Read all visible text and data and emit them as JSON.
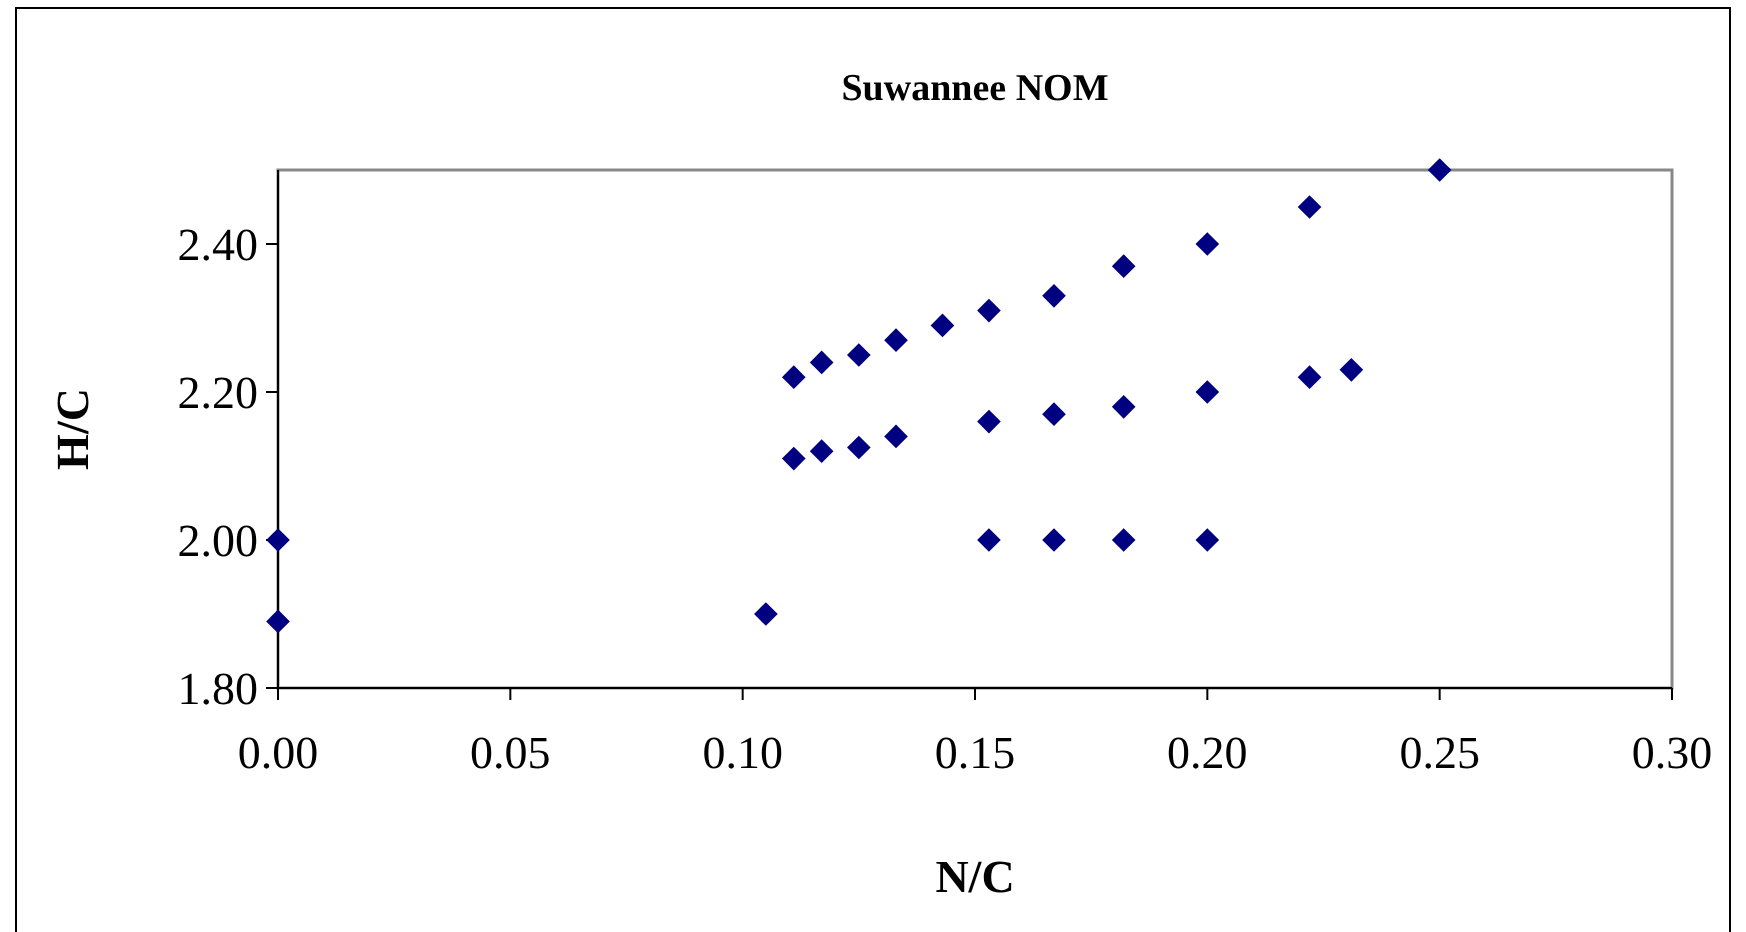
{
  "chart_data": {
    "type": "scatter",
    "title": "Suwannee NOM",
    "xlabel": "N/C",
    "ylabel": "H/C",
    "x": [
      0,
      0,
      0.105,
      0.111,
      0.117,
      0.125,
      0.133,
      0.143,
      0.153,
      0.167,
      0.182,
      0.2,
      0.222,
      0.25,
      0.111,
      0.117,
      0.125,
      0.133,
      0.153,
      0.167,
      0.182,
      0.2,
      0.222,
      0.231,
      0.153,
      0.167,
      0.182,
      0.2
    ],
    "values": [
      2.0,
      1.89,
      1.9,
      2.22,
      2.24,
      2.25,
      2.27,
      2.29,
      2.31,
      2.33,
      2.37,
      2.4,
      2.45,
      2.5,
      2.11,
      2.12,
      2.125,
      2.14,
      2.16,
      2.17,
      2.18,
      2.2,
      2.22,
      2.23,
      2.0,
      2.0,
      2.0,
      2.0
    ],
    "color": "#000080",
    "marker": "diamond",
    "xlim": [
      0,
      0.3
    ],
    "xticks": [
      {
        "value": 0,
        "label": "0.00"
      },
      0.05,
      {
        "value": 0.1,
        "label": "0.10"
      },
      0.15,
      {
        "value": 0.2,
        "label": "0.20"
      },
      0.25,
      {
        "value": 0.3,
        "label": "0.30"
      }
    ],
    "ylim": [
      1.8,
      2.5
    ],
    "yticks": [
      {
        "value": 1.8,
        "label": "1.80"
      },
      {
        "value": 2.0,
        "label": "2.00"
      },
      {
        "value": 2.2,
        "label": "2.20"
      },
      {
        "value": 2.4,
        "label": "2.40"
      }
    ],
    "grid": false
  }
}
